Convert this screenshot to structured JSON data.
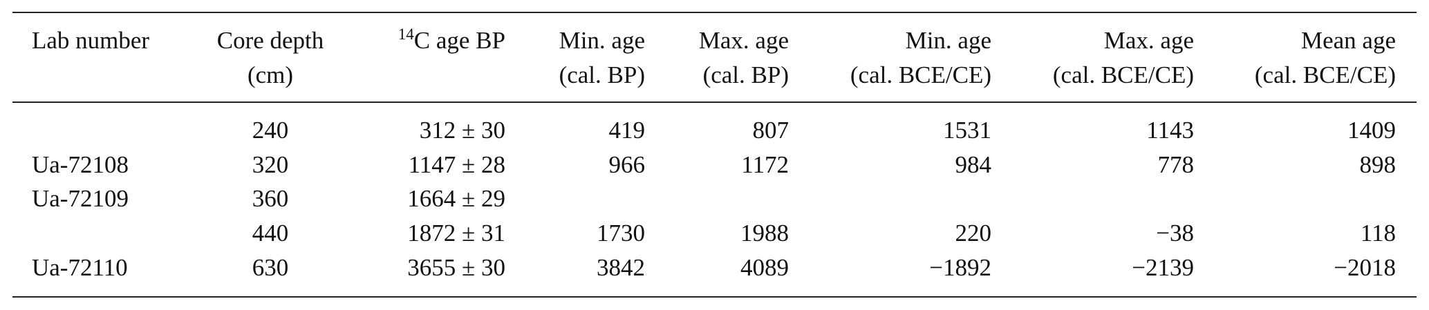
{
  "table": {
    "header": [
      {
        "lines": [
          "Lab number"
        ]
      },
      {
        "lines": [
          "Core depth",
          "(cm)"
        ]
      },
      {
        "sup": "14",
        "lines": [
          "C age BP"
        ]
      },
      {
        "lines": [
          "Min. age",
          "(cal. BP)"
        ]
      },
      {
        "lines": [
          "Max. age",
          "(cal. BP)"
        ]
      },
      {
        "lines": [
          "Min. age",
          "(cal. BCE/CE)"
        ]
      },
      {
        "lines": [
          "Max. age",
          "(cal. BCE/CE)"
        ]
      },
      {
        "lines": [
          "Mean age",
          "(cal. BCE/CE)"
        ]
      }
    ],
    "rows": [
      [
        null,
        "240",
        "312 ± 30",
        "419",
        "807",
        "1531",
        "1143",
        "1409"
      ],
      [
        "Ua-72108",
        "320",
        "1147 ± 28",
        "966",
        "1172",
        "984",
        "778",
        "898"
      ],
      [
        "Ua-72109",
        "360",
        "1664 ± 29",
        null,
        null,
        null,
        null,
        null
      ],
      [
        null,
        "440",
        "1872 ± 31",
        "1730",
        "1988",
        "220",
        "−38",
        "118"
      ],
      [
        "Ua-72110",
        "630",
        "3655 ± 30",
        "3842",
        "4089",
        "−1892",
        "−2139",
        "−2018"
      ]
    ]
  }
}
